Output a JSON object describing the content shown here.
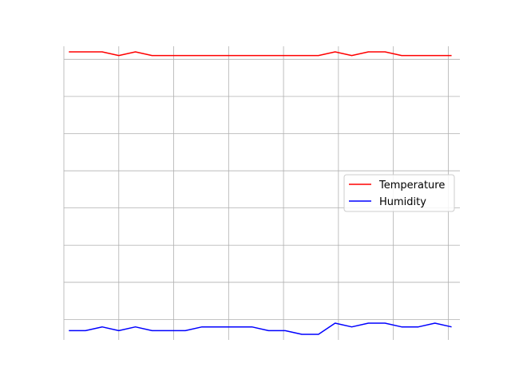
{
  "chart_data": {
    "type": "line",
    "x": [
      1,
      2,
      3,
      4,
      5,
      6,
      7,
      8,
      9,
      10,
      11,
      12,
      13,
      14,
      15,
      16,
      17,
      18,
      19,
      20,
      21,
      22,
      23,
      24
    ],
    "series": [
      {
        "name": "Temperature",
        "color": "#ff0000",
        "values": [
          30,
          30,
          30,
          29,
          30,
          29,
          29,
          29,
          29,
          29,
          29,
          29,
          29,
          29,
          29,
          29,
          30,
          29,
          30,
          30,
          29,
          29,
          29,
          29
        ]
      },
      {
        "name": "Humidity",
        "color": "#0000ff",
        "values": [
          -45,
          -45,
          -44,
          -45,
          -44,
          -45,
          -45,
          -45,
          -44,
          -44,
          -44,
          -44,
          -45,
          -45,
          -46,
          -46,
          -43,
          -44,
          -43,
          -43,
          -44,
          -44,
          -43,
          -44
        ]
      }
    ],
    "xlim": [
      0.7,
      24.5
    ],
    "ylim": [
      -47.5,
      31.5
    ],
    "xgrid": [
      0.7,
      4,
      7.3,
      10.6,
      13.9,
      17.2,
      20.5,
      23.8
    ],
    "ygrid": [
      -42,
      -32,
      -22,
      -12,
      -2,
      8,
      18,
      28
    ],
    "grid": true,
    "legend": "center-right"
  }
}
